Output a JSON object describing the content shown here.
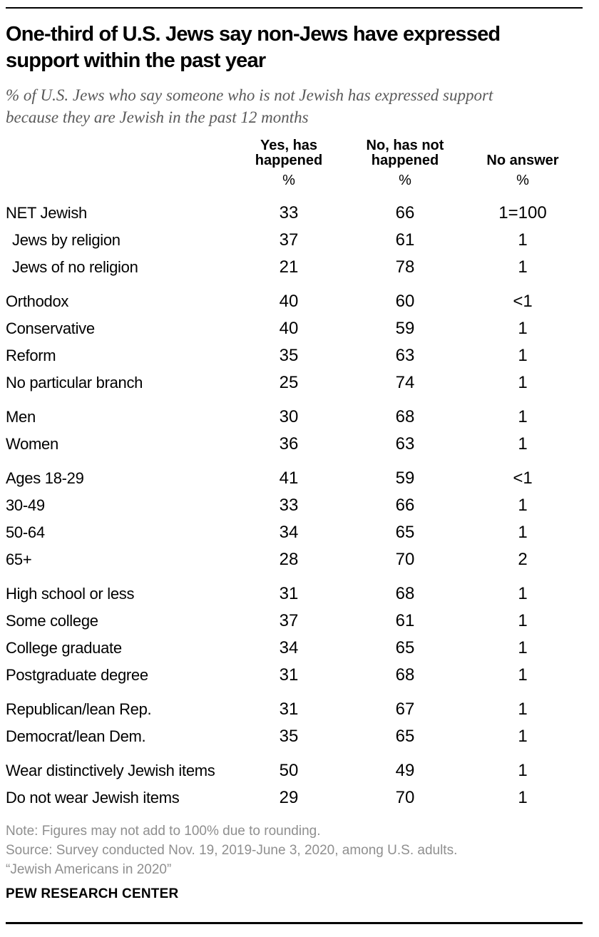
{
  "header": {
    "title_lines": [
      "One-third of U.S. Jews say non-Jews have expressed",
      "support within the past year"
    ],
    "subtitle_lines": [
      "% of U.S. Jews who say someone who is not Jewish has expressed support",
      "because they are Jewish in the past 12 months"
    ]
  },
  "chart_data": {
    "type": "table",
    "title": "One-third of U.S. Jews say non-Jews have expressed support within the past year",
    "subtitle": "% of U.S. Jews who say someone who is not Jewish has expressed support because they are Jewish in the past 12 months",
    "columns": [
      "Yes, has happened",
      "No, has not happened",
      "No answer"
    ],
    "unit": "%",
    "groups": [
      {
        "rows": [
          {
            "label": "NET Jewish",
            "yes": "33",
            "no": "66",
            "no_answer": "1=100"
          },
          {
            "label": "Jews by religion",
            "yes": "37",
            "no": "61",
            "no_answer": "1"
          },
          {
            "label": "Jews of no religion",
            "yes": "21",
            "no": "78",
            "no_answer": "1"
          }
        ]
      },
      {
        "rows": [
          {
            "label": "Orthodox",
            "yes": "40",
            "no": "60",
            "no_answer": "<1"
          },
          {
            "label": "Conservative",
            "yes": "40",
            "no": "59",
            "no_answer": "1"
          },
          {
            "label": "Reform",
            "yes": "35",
            "no": "63",
            "no_answer": "1"
          },
          {
            "label": "No particular branch",
            "yes": "25",
            "no": "74",
            "no_answer": "1"
          }
        ]
      },
      {
        "rows": [
          {
            "label": "Men",
            "yes": "30",
            "no": "68",
            "no_answer": "1"
          },
          {
            "label": "Women",
            "yes": "36",
            "no": "63",
            "no_answer": "1"
          }
        ]
      },
      {
        "rows": [
          {
            "label": "Ages 18-29",
            "yes": "41",
            "no": "59",
            "no_answer": "<1"
          },
          {
            "label": "30-49",
            "yes": "33",
            "no": "66",
            "no_answer": "1"
          },
          {
            "label": "50-64",
            "yes": "34",
            "no": "65",
            "no_answer": "1"
          },
          {
            "label": "65+",
            "yes": "28",
            "no": "70",
            "no_answer": "2"
          }
        ]
      },
      {
        "rows": [
          {
            "label": "High school or less",
            "yes": "31",
            "no": "68",
            "no_answer": "1"
          },
          {
            "label": "Some college",
            "yes": "37",
            "no": "61",
            "no_answer": "1"
          },
          {
            "label": "College graduate",
            "yes": "34",
            "no": "65",
            "no_answer": "1"
          },
          {
            "label": "Postgraduate degree",
            "yes": "31",
            "no": "68",
            "no_answer": "1"
          }
        ]
      },
      {
        "rows": [
          {
            "label": "Republican/lean Rep.",
            "yes": "31",
            "no": "67",
            "no_answer": "1"
          },
          {
            "label": "Democrat/lean Dem.",
            "yes": "35",
            "no": "65",
            "no_answer": "1"
          }
        ]
      },
      {
        "rows": [
          {
            "label": "Wear distinctively Jewish items",
            "yes": "50",
            "no": "49",
            "no_answer": "1"
          },
          {
            "label": "Do not wear Jewish items",
            "yes": "29",
            "no": "70",
            "no_answer": "1"
          }
        ]
      }
    ]
  },
  "footer": {
    "note": "Note: Figures may not add to 100% due to rounding.",
    "source": "Source: Survey conducted Nov. 19, 2019-June 3, 2020, among U.S. adults.",
    "quote": "“Jewish Americans in 2020”",
    "brand": "PEW RESEARCH CENTER"
  },
  "colors": {
    "text": "#000000",
    "subtitle_gray": "#595959",
    "footnote_gray": "#8f8f8f",
    "rule": "#000000"
  }
}
